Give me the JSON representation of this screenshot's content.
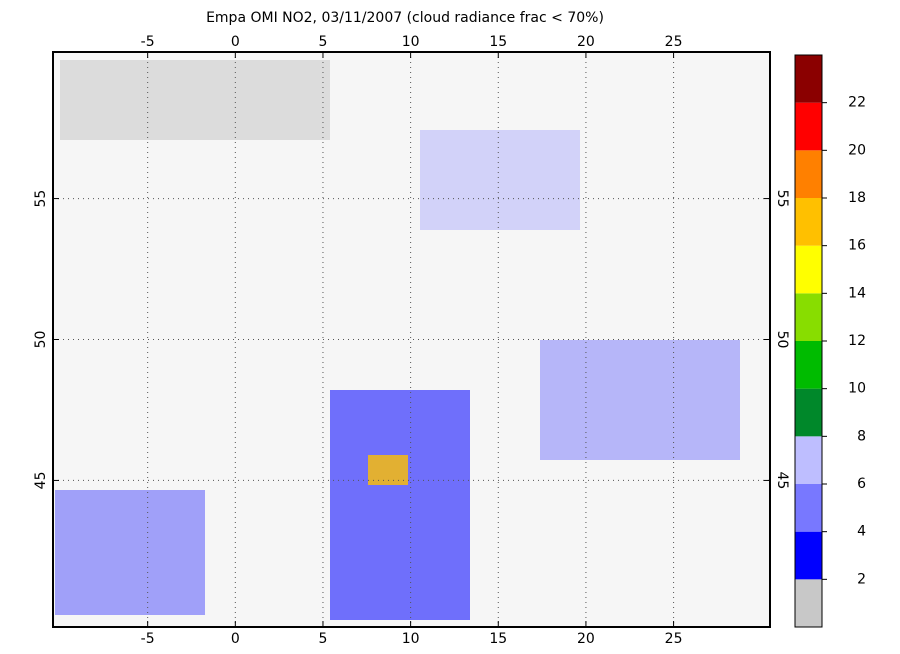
{
  "chart_data": {
    "type": "map",
    "title": "Empa OMI NO2, 03/11/2007 (cloud radiance frac < 70%)",
    "xlim": [
      -10.4,
      30.5
    ],
    "xticks": [
      -5,
      0,
      5,
      10,
      15,
      20,
      25
    ],
    "ylim": [
      39.8,
      60.2
    ],
    "yticks": [
      45,
      50,
      55
    ],
    "grid": true,
    "colorbar": {
      "lim": [
        0,
        24
      ],
      "ticks": [
        2,
        4,
        6,
        8,
        10,
        12,
        14,
        16,
        18,
        20,
        22
      ],
      "colors": [
        "#c8c8c8",
        "#0000ff",
        "#7878ff",
        "#bebeff",
        "#00882a",
        "#00bb00",
        "#88dd00",
        "#ffff00",
        "#ffc000",
        "#ff8000",
        "#ff0000",
        "#8b0000"
      ]
    }
  }
}
